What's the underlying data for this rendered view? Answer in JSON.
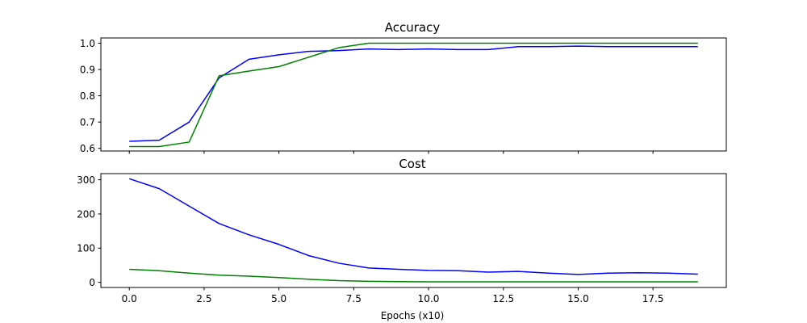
{
  "chart_data": [
    {
      "type": "line",
      "title": "Accuracy",
      "xlabel": "",
      "ylabel": "",
      "x": [
        0,
        1,
        2,
        3,
        4,
        5,
        6,
        7,
        8,
        9,
        10,
        11,
        12,
        13,
        14,
        15,
        16,
        17,
        18,
        19
      ],
      "xlim": [
        -0.95,
        19.95
      ],
      "ylim": [
        0.59,
        1.02
      ],
      "xticks": [
        0.0,
        2.5,
        5.0,
        7.5,
        10.0,
        12.5,
        15.0,
        17.5
      ],
      "xtick_labels_visible": false,
      "yticks": [
        0.6,
        0.7,
        0.8,
        0.9,
        1.0
      ],
      "ytick_labels": [
        "0.6",
        "0.7",
        "0.8",
        "0.9",
        "1.0"
      ],
      "grid": false,
      "series": [
        {
          "color": "#0000ff",
          "values": [
            0.627,
            0.631,
            0.7,
            0.868,
            0.939,
            0.956,
            0.969,
            0.972,
            0.978,
            0.976,
            0.978,
            0.976,
            0.976,
            0.987,
            0.987,
            0.989,
            0.987,
            0.987,
            0.987,
            0.987
          ]
        },
        {
          "color": "#008000",
          "values": [
            0.607,
            0.607,
            0.624,
            0.876,
            0.894,
            0.911,
            0.947,
            0.983,
            1.0,
            1.0,
            1.0,
            1.0,
            1.0,
            1.0,
            1.0,
            1.0,
            1.0,
            1.0,
            1.0,
            1.0
          ]
        }
      ]
    },
    {
      "type": "line",
      "title": "Cost",
      "xlabel": "Epochs (x10)",
      "ylabel": "",
      "x": [
        0,
        1,
        2,
        3,
        4,
        5,
        6,
        7,
        8,
        9,
        10,
        11,
        12,
        13,
        14,
        15,
        16,
        17,
        18,
        19
      ],
      "xlim": [
        -0.95,
        19.95
      ],
      "ylim": [
        -15,
        318
      ],
      "xticks": [
        0.0,
        2.5,
        5.0,
        7.5,
        10.0,
        12.5,
        15.0,
        17.5
      ],
      "xtick_labels": [
        "0.0",
        "2.5",
        "5.0",
        "7.5",
        "10.0",
        "12.5",
        "15.0",
        "17.5"
      ],
      "yticks": [
        0,
        100,
        200,
        300
      ],
      "ytick_labels": [
        "0",
        "100",
        "200",
        "300"
      ],
      "grid": false,
      "series": [
        {
          "color": "#0000ff",
          "values": [
            303,
            274,
            223,
            172,
            139,
            111,
            78,
            56,
            42,
            38,
            35,
            34,
            30,
            32,
            27,
            23,
            27,
            28,
            27,
            24
          ]
        },
        {
          "color": "#008000",
          "values": [
            38,
            34,
            27,
            21,
            18,
            14,
            9,
            5,
            3,
            2,
            1.5,
            1.5,
            1.5,
            1.5,
            1.5,
            1.5,
            1.5,
            1.5,
            1.5,
            1.5
          ]
        }
      ]
    }
  ]
}
